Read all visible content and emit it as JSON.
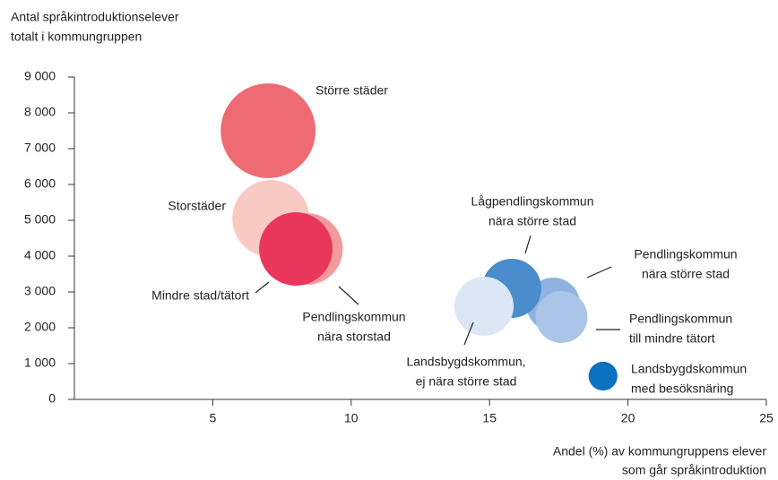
{
  "chart_data": {
    "type": "bubble",
    "y_label": [
      "Antal språkintroduktionselever",
      "totalt i kommungruppen"
    ],
    "x_label": [
      "Andel (%) av kommungruppens elever",
      "som går språkintroduktion"
    ],
    "xlim": [
      0,
      25
    ],
    "xticks": [
      5,
      10,
      15,
      20,
      25
    ],
    "ylim": [
      0,
      9000
    ],
    "yticks": [
      {
        "value": 0,
        "label": "0"
      },
      {
        "value": 1000,
        "label": "1 000"
      },
      {
        "value": 2000,
        "label": "2 000"
      },
      {
        "value": 3000,
        "label": "3 000"
      },
      {
        "value": 4000,
        "label": "4 000"
      },
      {
        "value": 5000,
        "label": "5 000"
      },
      {
        "value": 6000,
        "label": "6 000"
      },
      {
        "value": 7000,
        "label": "7 000"
      },
      {
        "value": 8000,
        "label": "8 000"
      },
      {
        "value": 9000,
        "label": "9 000"
      }
    ],
    "series": [
      {
        "name": [
          "Större städer"
        ],
        "color": "#ee6b73",
        "x": 7.0,
        "y": 7500,
        "size": 280
      },
      {
        "name": [
          "Storstäder"
        ],
        "color": "#f9c9c3",
        "x": 7.1,
        "y": 5050,
        "size": 185
      },
      {
        "name": [
          "Pendlingskommun",
          "nära storstad"
        ],
        "color": "#f4999c",
        "x": 8.4,
        "y": 4200,
        "size": 160
      },
      {
        "name": [
          "Mindre stad/tätort"
        ],
        "color": "#e8375a",
        "x": 8.0,
        "y": 4200,
        "size": 168
      },
      {
        "name": [
          "Pendlingskommun",
          "nära större stad"
        ],
        "color": "#8fb3e0",
        "x": 17.3,
        "y": 2650,
        "size": 90
      },
      {
        "name": [
          "Pendlingskommun",
          "till mindre tätort"
        ],
        "color": "#aac5e8",
        "x": 17.6,
        "y": 2300,
        "size": 84
      },
      {
        "name": [
          "Lågpendlingskommun",
          "nära större stad"
        ],
        "color": "#4a8ccc",
        "x": 15.8,
        "y": 3100,
        "size": 109
      },
      {
        "name": [
          "Landsbygdskommun,",
          "ej nära större stad"
        ],
        "color": "#dce7f6",
        "x": 14.8,
        "y": 2600,
        "size": 109
      },
      {
        "name": [
          "Landsbygdskommun",
          "med besöksnäring"
        ],
        "color": "#0a72c0",
        "x": 19.1,
        "y": 650,
        "size": 26
      }
    ]
  }
}
